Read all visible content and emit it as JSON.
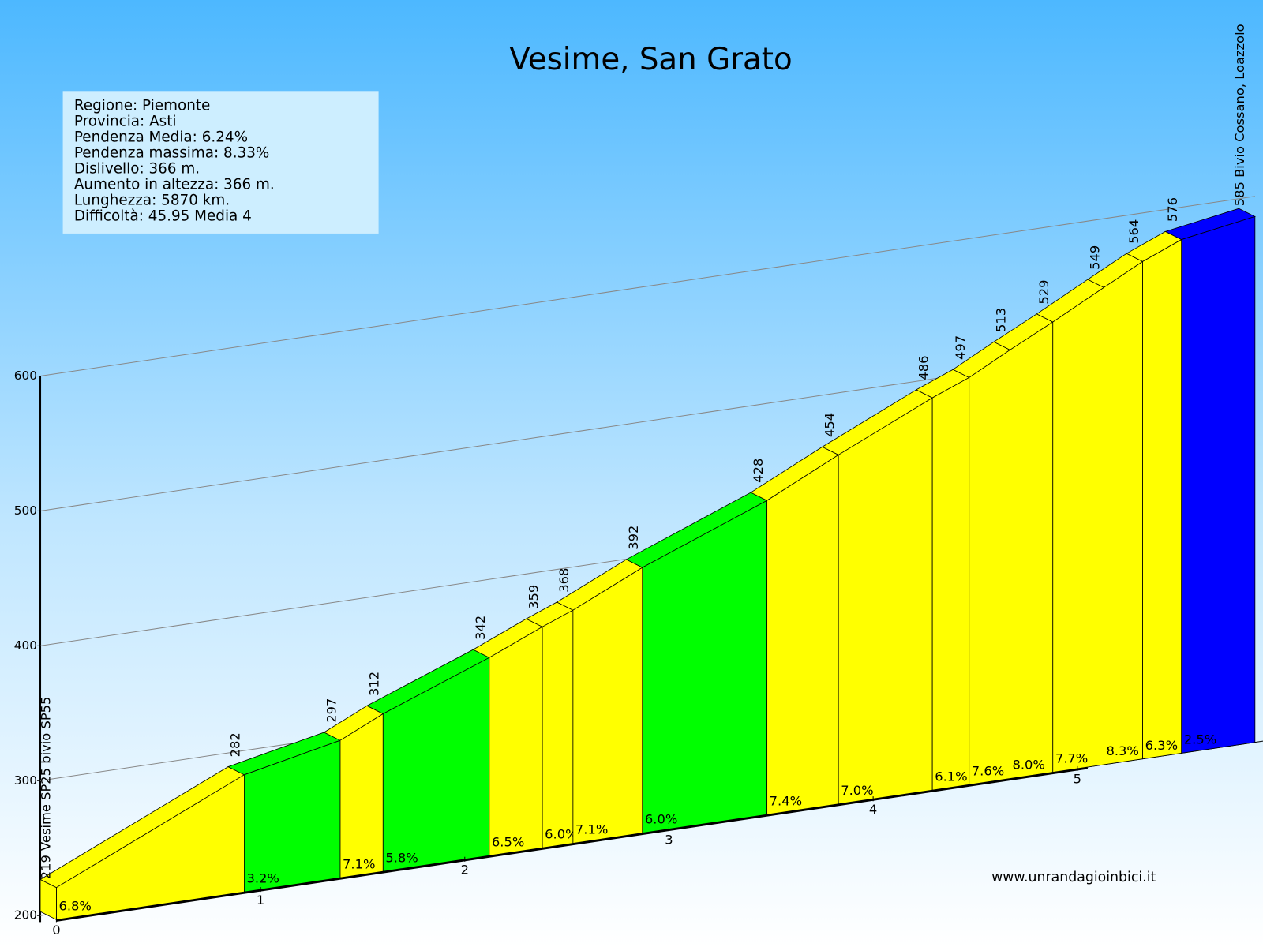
{
  "chart_data": {
    "type": "profile",
    "title": "Vesime, San Grato",
    "info": [
      "Regione: Piemonte",
      "Provincia: Asti",
      "Pendenza Media: 6.24%",
      "Pendenza massima: 8.33%",
      "Dislivello:   366 m.",
      "Aumento in altezza:   366 m.",
      "Lunghezza:  5870 km.",
      "Difficoltà: 45.95 Media 4"
    ],
    "start_label": "219 Vesime SP25 bivio SP55",
    "end_label": "585 Bivio Cossano, Loazzolo",
    "website": "www.unrandagioinbici.it",
    "x": [
      0,
      0.92,
      1.39,
      1.6,
      2.12,
      2.38,
      2.53,
      2.87,
      3.48,
      3.83,
      4.29,
      4.47,
      4.67,
      4.88,
      5.13,
      5.32,
      5.51,
      5.87
    ],
    "elevations": [
      219,
      282,
      297,
      312,
      342,
      359,
      368,
      392,
      428,
      454,
      486,
      497,
      513,
      529,
      549,
      564,
      576,
      585
    ],
    "gradients": [
      6.8,
      3.2,
      7.1,
      5.8,
      6.5,
      6.0,
      7.1,
      6.0,
      7.4,
      7.0,
      6.1,
      7.6,
      8.0,
      7.7,
      8.3,
      6.3,
      2.5
    ],
    "gradient_labels": [
      "6.8%",
      "3.2%",
      "7.1%",
      "5.8%",
      "6.5%",
      "6.0%",
      "7.1%",
      "6.0%",
      "7.4%",
      "7.0%",
      "6.1%",
      "7.6%",
      "8.0%",
      "7.7%",
      "8.3%",
      "6.3%",
      "2.5%"
    ],
    "segment_colors": [
      "#ffff00",
      "#00ff00",
      "#ffff00",
      "#00ff00",
      "#ffff00",
      "#ffff00",
      "#ffff00",
      "#00ff00",
      "#ffff00",
      "#ffff00",
      "#ffff00",
      "#ffff00",
      "#ffff00",
      "#ffff00",
      "#ffff00",
      "#ffff00",
      "#0000ff"
    ],
    "ylim": [
      200,
      600
    ],
    "yticks": [
      200,
      300,
      400,
      500,
      600
    ],
    "xticks": [
      0,
      1,
      2,
      3,
      4,
      5
    ],
    "grid": true
  }
}
